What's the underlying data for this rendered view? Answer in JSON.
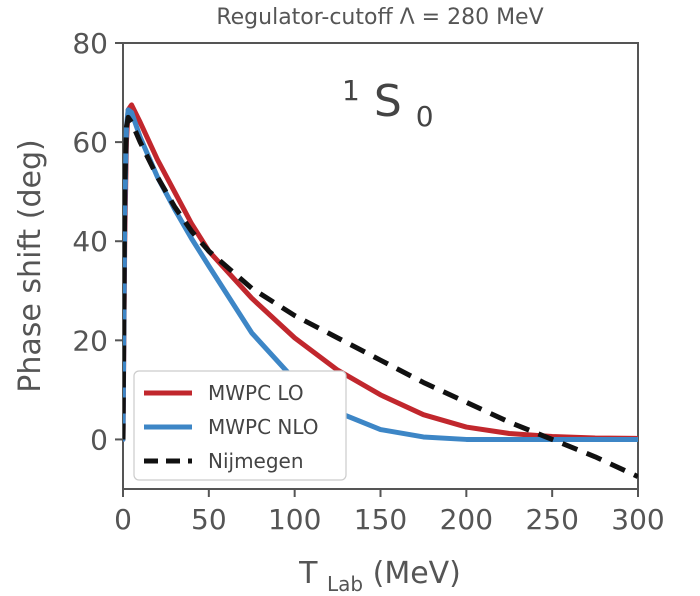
{
  "chart_data": {
    "type": "line",
    "title": "Regulator-cutoff Λ = 280 MeV",
    "annotation": {
      "sup": "1",
      "main": "S",
      "sub": "0"
    },
    "xlabel": {
      "main": "T",
      "sub": "Lab",
      "unit": " (MeV)"
    },
    "ylabel": "Phase shift (deg)",
    "xlim": [
      0,
      300
    ],
    "ylim": [
      -10,
      80
    ],
    "xticks": [
      "0",
      "50",
      "100",
      "150",
      "200",
      "250",
      "300"
    ],
    "yticks": [
      "0",
      "20",
      "40",
      "60",
      "80"
    ],
    "grid": false,
    "legend_position": "lower-left",
    "series": [
      {
        "name": "MWPC LO",
        "color": "#c1272d",
        "style": "solid",
        "x": [
          0,
          1,
          2,
          3,
          5,
          10,
          20,
          30,
          40,
          50,
          75,
          100,
          125,
          150,
          175,
          200,
          225,
          250,
          275,
          300
        ],
        "y": [
          0,
          40,
          60,
          66.5,
          67.5,
          64,
          56.5,
          50,
          43.5,
          38,
          28.5,
          20.5,
          14,
          9,
          5,
          2.5,
          1.2,
          0.6,
          0.3,
          0.2
        ]
      },
      {
        "name": "MWPC NLO",
        "color": "#3d86c6",
        "style": "solid",
        "x": [
          0,
          1,
          2,
          3,
          5,
          10,
          20,
          30,
          40,
          50,
          75,
          100,
          125,
          150,
          175,
          200,
          225,
          250,
          275,
          300
        ],
        "y": [
          0,
          45,
          63,
          66.5,
          66,
          61,
          53,
          46.5,
          40.5,
          35,
          21.5,
          12,
          5.5,
          2,
          0.5,
          0,
          0,
          0,
          0,
          0
        ]
      },
      {
        "name": "Nijmegen",
        "color": "#111111",
        "style": "dashed",
        "x": [
          0,
          0.5,
          1,
          2,
          3,
          5,
          10,
          20,
          30,
          40,
          50,
          75,
          100,
          125,
          150,
          175,
          200,
          225,
          250,
          275,
          300
        ],
        "y": [
          0,
          25,
          50,
          63,
          65,
          64,
          60,
          53,
          47,
          42,
          38,
          30.5,
          25,
          20.5,
          16,
          11.5,
          7.5,
          3.5,
          0,
          -3.5,
          -7.5
        ]
      }
    ]
  }
}
